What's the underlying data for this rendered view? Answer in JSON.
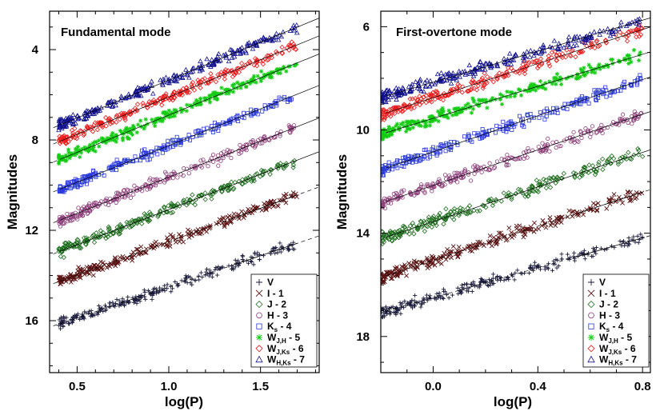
{
  "chart_data": [
    {
      "type": "scatter",
      "title": "Fundamental mode",
      "xlabel": "log(P)",
      "ylabel": "Magnitudes",
      "xlim": [
        0.35,
        1.82
      ],
      "ylim": [
        18.3,
        2.3
      ],
      "y_inverted": true,
      "xticks": [
        0.5,
        1.0,
        1.5
      ],
      "xtick_labels": [
        "0.5",
        "1.0",
        "1.5"
      ],
      "yticks": [
        4,
        8,
        12,
        16
      ],
      "ytick_labels": [
        "4",
        "8",
        "12",
        "16"
      ],
      "legend_position": "bottom-right",
      "x_range": [
        0.4,
        1.7
      ],
      "series": [
        {
          "name": "V",
          "color": "#1c1c3c",
          "marker": "plus",
          "intercept": 17.25,
          "slope": -2.75,
          "solid_until": 1.35
        },
        {
          "name": "I - 1",
          "color": "#5a1212",
          "marker": "cross",
          "intercept": 15.45,
          "slope": -2.95,
          "solid_until": 1.35
        },
        {
          "name": "J - 2",
          "color": "#1e6e1e",
          "marker": "diamond",
          "intercept": 14.2,
          "slope": -3.12,
          "solid_until": 1.82
        },
        {
          "name": "H - 3",
          "color": "#8c3c78",
          "marker": "circle",
          "intercept": 12.85,
          "slope": -3.2,
          "solid_until": 1.82
        },
        {
          "name": "Ks - 4",
          "color": "#2a3ad6",
          "marker": "square",
          "intercept": 11.5,
          "slope": -3.25,
          "solid_until": 1.82
        },
        {
          "name": "WJ,H - 5",
          "color": "#14cc14",
          "marker": "asterisk",
          "intercept": 10.2,
          "slope": -3.3,
          "solid_until": 1.82
        },
        {
          "name": "WJ,Ks - 6",
          "color": "#ee1a1a",
          "marker": "diamond",
          "intercept": 9.4,
          "slope": -3.3,
          "solid_until": 1.82
        },
        {
          "name": "WH,Ks - 7",
          "color": "#10108e",
          "marker": "triangle",
          "intercept": 8.7,
          "slope": -3.35,
          "solid_until": 1.82
        }
      ]
    },
    {
      "type": "scatter",
      "title": "First-overtone mode",
      "xlabel": "log(P)",
      "ylabel": "Magnitudes",
      "xlim": [
        -0.2,
        0.83
      ],
      "ylim": [
        19.4,
        5.4
      ],
      "y_inverted": true,
      "xticks": [
        0.0,
        0.4,
        0.8
      ],
      "xtick_labels": [
        "0.0",
        "0.4",
        "0.8"
      ],
      "yticks": [
        6,
        10,
        14,
        18
      ],
      "ytick_labels": [
        "6",
        "10",
        "14",
        "18"
      ],
      "legend_position": "bottom-right",
      "x_range": [
        -0.2,
        0.8
      ],
      "series": [
        {
          "name": "V",
          "color": "#1c1c3c",
          "marker": "plus",
          "intercept": 16.5,
          "slope": -2.9,
          "solid_until": 0.55
        },
        {
          "name": "I - 1",
          "color": "#5a1212",
          "marker": "cross",
          "intercept": 15.05,
          "slope": -3.3,
          "solid_until": 0.55
        },
        {
          "name": "J - 2",
          "color": "#1e6e1e",
          "marker": "diamond",
          "intercept": 13.55,
          "slope": -3.35,
          "solid_until": 0.83
        },
        {
          "name": "H - 3",
          "color": "#8c3c78",
          "marker": "circle",
          "intercept": 12.15,
          "slope": -3.45,
          "solid_until": 0.83
        },
        {
          "name": "Ks - 4",
          "color": "#2a3ad6",
          "marker": "square",
          "intercept": 10.85,
          "slope": -3.5,
          "solid_until": 0.83
        },
        {
          "name": "WJ,H - 5",
          "color": "#14cc14",
          "marker": "asterisk",
          "intercept": 9.55,
          "slope": -3.1,
          "solid_until": 0.83
        },
        {
          "name": "WJ,Ks - 6",
          "color": "#ee1a1a",
          "marker": "diamond",
          "intercept": 8.75,
          "slope": -3.3,
          "solid_until": 0.83
        },
        {
          "name": "WH,Ks - 7",
          "color": "#10108e",
          "marker": "triangle",
          "intercept": 8.15,
          "slope": -3.0,
          "solid_until": 0.83
        }
      ]
    }
  ],
  "legend": [
    {
      "main": "V",
      "sub": "",
      "tail": ""
    },
    {
      "main": "I - 1",
      "sub": "",
      "tail": ""
    },
    {
      "main": "J - 2",
      "sub": "",
      "tail": ""
    },
    {
      "main": "H - 3",
      "sub": "",
      "tail": ""
    },
    {
      "main": "K",
      "sub": "s",
      "tail": " - 4"
    },
    {
      "main": "W",
      "sub": "J,H",
      "tail": " - 5"
    },
    {
      "main": "W",
      "sub": "J,Ks",
      "tail": " - 6"
    },
    {
      "main": "W",
      "sub": "H,Ks",
      "tail": " - 7"
    }
  ]
}
